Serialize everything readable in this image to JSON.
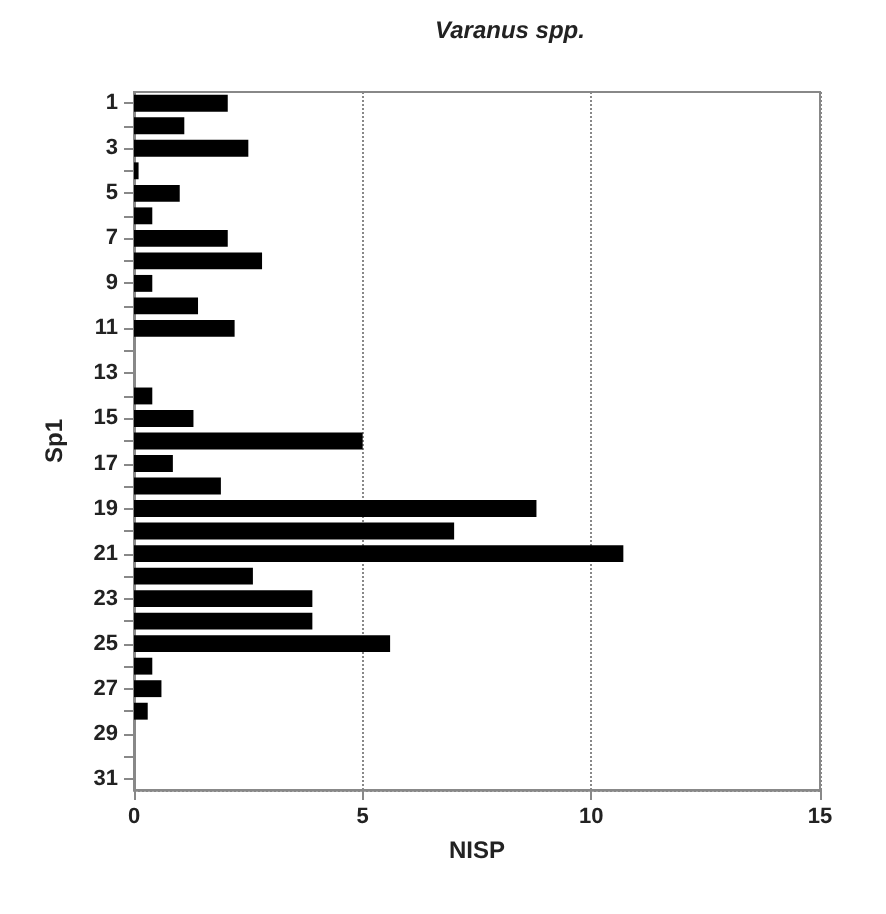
{
  "chart_data": {
    "type": "bar",
    "orientation": "horizontal",
    "title": "Varanus spp.",
    "xlabel": "NISP",
    "ylabel": "Sp1",
    "categories": [
      "1",
      null,
      "3",
      null,
      "5",
      null,
      "7",
      null,
      "9",
      null,
      "11",
      null,
      "13",
      null,
      "15",
      null,
      "17",
      null,
      "19",
      null,
      "21",
      null,
      "23",
      null,
      "25",
      null,
      "27",
      null,
      "29",
      null,
      "31"
    ],
    "values": [
      2.05,
      1.1,
      2.5,
      0.1,
      1.0,
      0.4,
      2.05,
      2.8,
      0.4,
      1.4,
      2.2,
      0,
      0,
      0.4,
      1.3,
      5.0,
      0.85,
      1.9,
      8.8,
      7.0,
      10.7,
      2.6,
      3.9,
      3.9,
      5.6,
      0.4,
      0.6,
      0.3,
      0,
      0,
      0
    ],
    "color": "#000000",
    "xlim": [
      0,
      15
    ],
    "xticks": [
      0,
      5,
      10,
      15
    ],
    "grid": "x"
  }
}
